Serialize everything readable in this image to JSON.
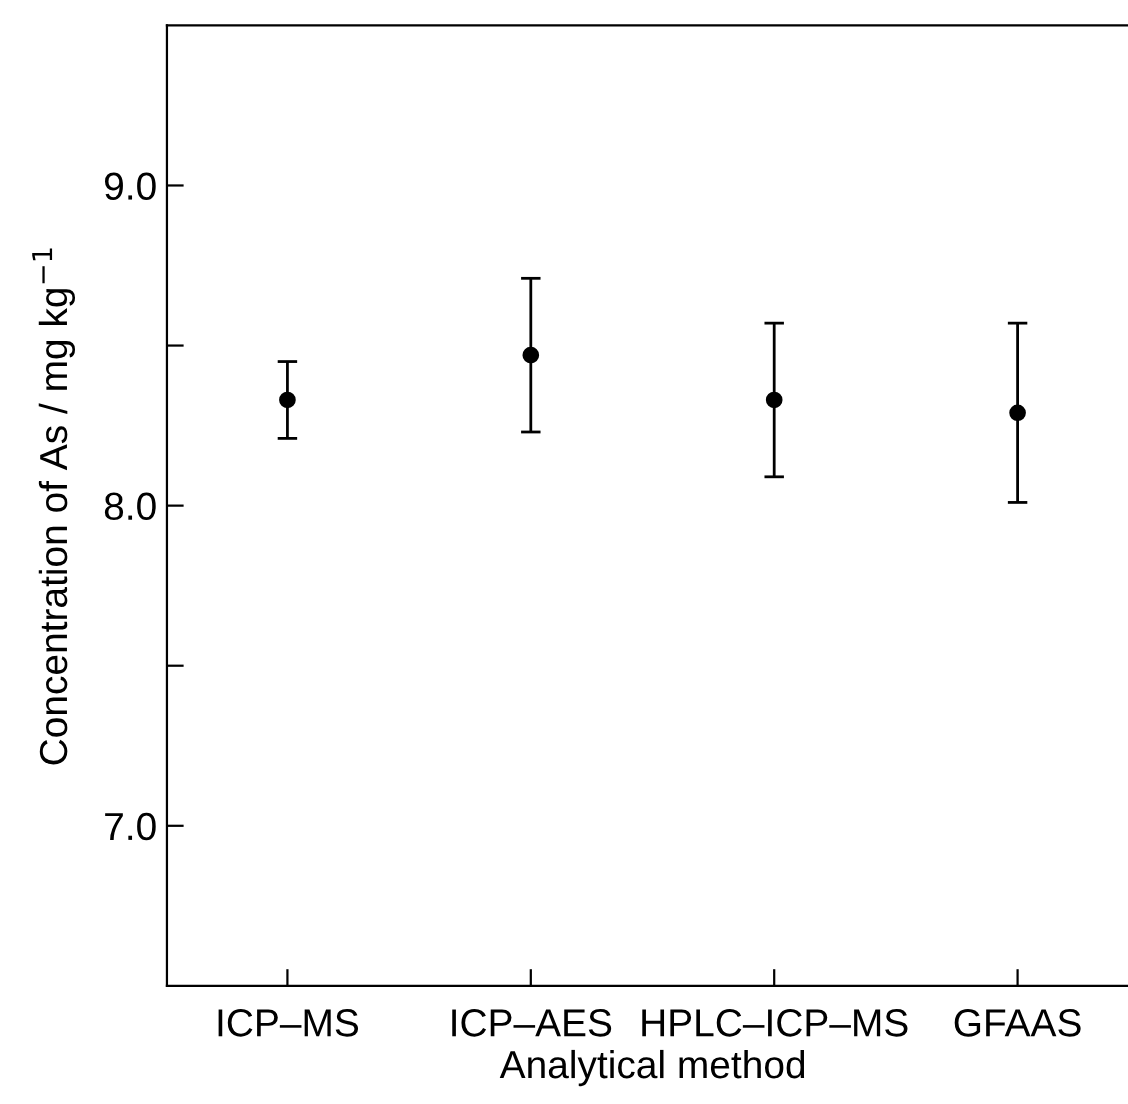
{
  "chart_data": {
    "type": "scatter",
    "xlabel": "Analytical method",
    "ylabel": "Concentration of As / mg kg$^{−1}$",
    "categories": [
      "ICP–MS",
      "ICP–AES",
      "HPLC–ICP–MS",
      "GFAAS"
    ],
    "values": [
      8.33,
      8.47,
      8.33,
      8.29
    ],
    "errors": [
      0.12,
      0.24,
      0.24,
      0.28
    ],
    "color": "#000000",
    "marker": "circle",
    "ylim": [
      6.5,
      9.5
    ],
    "yticks": [
      {
        "value": 7.0,
        "label": "7.0"
      },
      {
        "value": 7.5,
        "label": null
      },
      {
        "value": 8.0,
        "label": "8.0"
      },
      {
        "value": 8.5,
        "label": null
      },
      {
        "value": 9.0,
        "label": "9.0"
      }
    ],
    "grid": false,
    "legend": false
  }
}
